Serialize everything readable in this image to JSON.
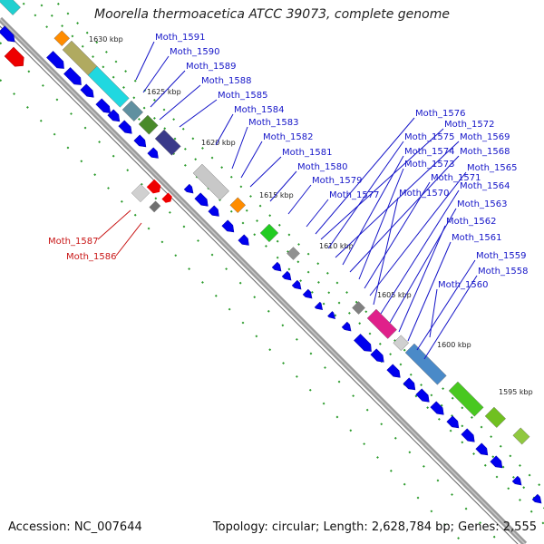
{
  "title": "Moorella thermoacetica ATCC 39073, complete genome",
  "accession": "Accession: NC_007644",
  "summary": "Topology: circular; Length: 2,628,784 bp; Genes: 2,555",
  "scale_labels": [
    "1630 kbp",
    "1625 kbp",
    "1620 kbp",
    "1615 kbp",
    "1610 kbp",
    "1605 kbp",
    "1600 kbp",
    "1595 kbp"
  ],
  "gene_labels_forward": [
    "Moth_1587",
    "Moth_1586"
  ],
  "gene_labels_reverse": [
    "Moth_1591",
    "Moth_1590",
    "Moth_1589",
    "Moth_1588",
    "Moth_1585",
    "Moth_1584",
    "Moth_1583",
    "Moth_1582",
    "Moth_1581",
    "Moth_1580",
    "Moth_1579",
    "Moth_1577",
    "Moth_1576",
    "Moth_1572",
    "Moth_1575",
    "Moth_1569",
    "Moth_1574",
    "Moth_1568",
    "Moth_1573",
    "Moth_1571",
    "Moth_1565",
    "Moth_1570",
    "Moth_1564",
    "Moth_1563",
    "Moth_1562",
    "Moth_1561",
    "Moth_1559",
    "Moth_1558",
    "Moth_1560"
  ],
  "colors": {
    "reverse_gene": "#0000ee",
    "forward_gene": "#ee0000",
    "backbone": "#8a8a8a",
    "gc_dots": "#2a9a2a",
    "label_blue": "#1515c8",
    "label_red": "#c81515"
  }
}
